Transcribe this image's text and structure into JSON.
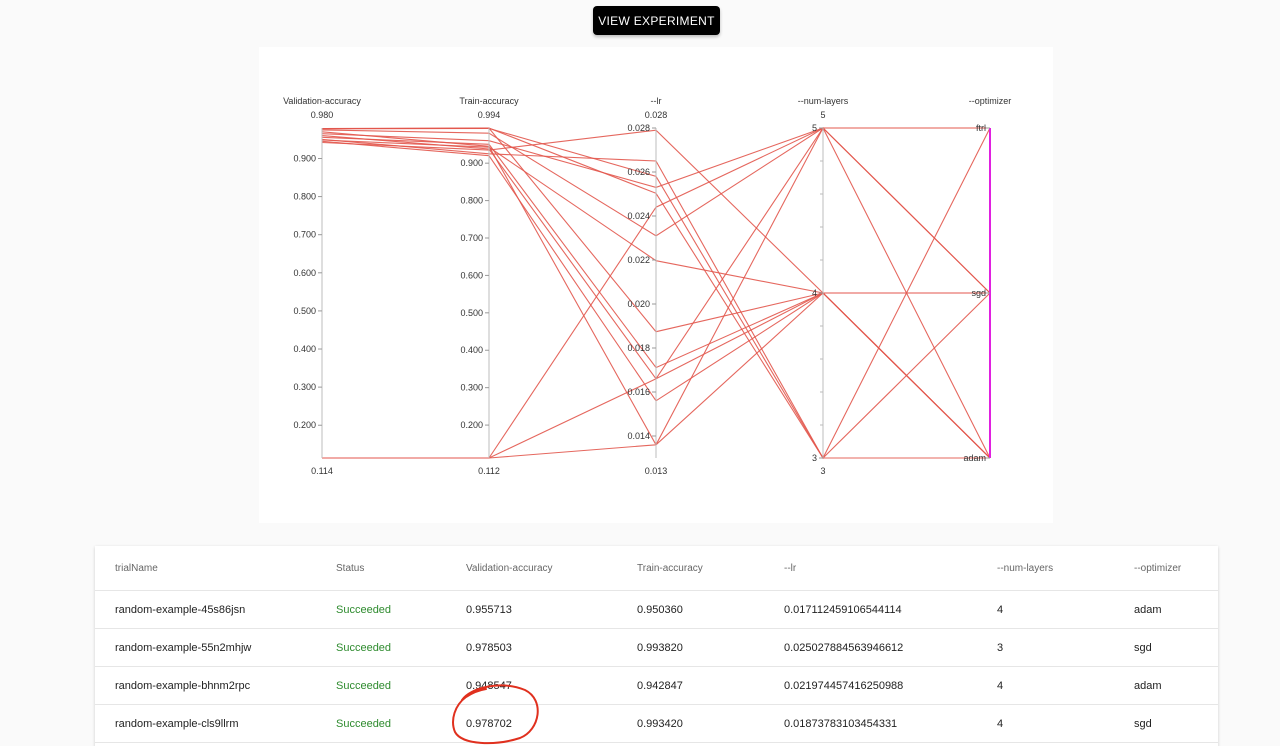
{
  "header": {
    "view_experiment_label": "VIEW EXPERIMENT"
  },
  "colors": {
    "line": "#e2574c",
    "highlight_axis": "#e020e0",
    "annotation": "#e0301e",
    "success": "#2e8b2e"
  },
  "chart_data": {
    "type": "parallel-coordinates",
    "axes": [
      {
        "name": "Validation-accuracy",
        "min": 0.114,
        "max": 0.98,
        "min_label": "0.114",
        "max_label": "0.980",
        "ticks": [
          "0.900",
          "0.800",
          "0.700",
          "0.600",
          "0.500",
          "0.400",
          "0.300",
          "0.200"
        ],
        "tick_values": [
          0.9,
          0.8,
          0.7,
          0.6,
          0.5,
          0.4,
          0.3,
          0.2
        ]
      },
      {
        "name": "Train-accuracy",
        "min": 0.112,
        "max": 0.994,
        "min_label": "0.112",
        "max_label": "0.994",
        "ticks": [
          "0.900",
          "0.800",
          "0.700",
          "0.600",
          "0.500",
          "0.400",
          "0.300",
          "0.200"
        ],
        "tick_values": [
          0.9,
          0.8,
          0.7,
          0.6,
          0.5,
          0.4,
          0.3,
          0.2
        ]
      },
      {
        "name": "--lr",
        "min": 0.013,
        "max": 0.028,
        "min_label": "0.013",
        "max_label": "0.028",
        "ticks": [
          "0.028",
          "0.026",
          "0.024",
          "0.022",
          "0.020",
          "0.018",
          "0.016",
          "0.014"
        ],
        "tick_values": [
          0.028,
          0.026,
          0.024,
          0.022,
          0.02,
          0.018,
          0.016,
          0.014
        ]
      },
      {
        "name": "--num-layers",
        "min": 3,
        "max": 5,
        "min_label": "3",
        "max_label": "5",
        "ticks": [
          "5",
          "4",
          "3"
        ],
        "tick_values": [
          5,
          4,
          3
        ]
      },
      {
        "name": "--optimizer",
        "categorical": true,
        "categories": [
          "ftrl",
          "sgd",
          "adam"
        ],
        "min_label": "",
        "max_label": ""
      }
    ],
    "lines": [
      [
        0.9557,
        0.9504,
        0.01711,
        4,
        "adam"
      ],
      [
        0.9785,
        0.9938,
        0.02503,
        3,
        "sgd"
      ],
      [
        0.9485,
        0.9428,
        0.02197,
        4,
        "adam"
      ],
      [
        0.9787,
        0.9934,
        0.01874,
        4,
        "sgd"
      ],
      [
        0.978,
        0.993,
        0.0258,
        3,
        "ftrl"
      ],
      [
        0.942,
        0.935,
        0.0279,
        4,
        "adam"
      ],
      [
        0.97,
        0.945,
        0.0136,
        5,
        "ftrl"
      ],
      [
        0.96,
        0.938,
        0.0166,
        5,
        "sgd"
      ],
      [
        0.95,
        0.925,
        0.0265,
        3,
        "adam"
      ],
      [
        0.945,
        0.92,
        0.0156,
        4,
        "sgd"
      ],
      [
        0.975,
        0.98,
        0.0231,
        5,
        "adam"
      ],
      [
        0.965,
        0.96,
        0.0253,
        5,
        "sgd"
      ],
      [
        0.114,
        0.112,
        0.0244,
        5,
        "ftrl"
      ],
      [
        0.114,
        0.112,
        0.0166,
        4,
        "sgd"
      ],
      [
        0.114,
        0.112,
        0.0136,
        4,
        "adam"
      ]
    ]
  },
  "table": {
    "columns": [
      "trialName",
      "Status",
      "Validation-accuracy",
      "Train-accuracy",
      "--lr",
      "--num-layers",
      "--optimizer"
    ],
    "rows": [
      [
        "random-example-45s86jsn",
        "Succeeded",
        "0.955713",
        "0.950360",
        "0.01711245910654411​4",
        "4",
        "adam"
      ],
      [
        "random-example-55n2mhjw",
        "Succeeded",
        "0.978503",
        "0.993820",
        "0.025027884563946612",
        "3",
        "sgd"
      ],
      [
        "random-example-bhnm2rpc",
        "Succeeded",
        "0.948547",
        "0.942847",
        "0.021974457416250988",
        "4",
        "adam"
      ],
      [
        "random-example-cls9llrm",
        "Succeeded",
        "0.978702",
        "0.993420",
        "0.01873783103454331",
        "4",
        "sgd"
      ]
    ]
  }
}
